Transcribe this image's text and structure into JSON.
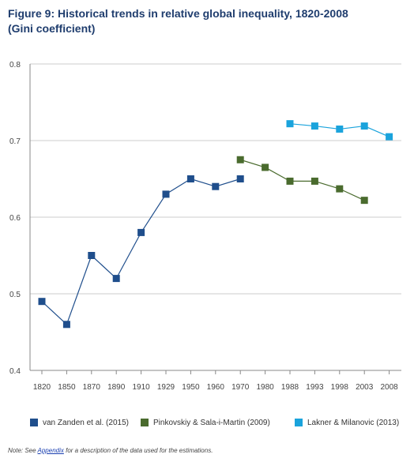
{
  "figure": {
    "title_line1": "Figure 9: Historical trends in relative global inequality, 1820-2008",
    "title_line2": "(Gini coefficient)",
    "footnote_prefix": "Note: See ",
    "footnote_link": "Appendix",
    "footnote_suffix": " for a description of the data used for the estimations."
  },
  "colors": {
    "title": "#1f3d6e",
    "van_zanden": "#1f4e8c",
    "pinkovskiy": "#4a6b2e",
    "lakner": "#1aa3dc",
    "axis": "#888888",
    "grid": "#cccccc"
  },
  "chart_data": {
    "type": "line",
    "title": "Figure 9: Historical trends in relative global inequality, 1820-2008",
    "subtitle": "(Gini coefficient)",
    "xlabel": "",
    "ylabel": "",
    "ylim": [
      0.4,
      0.8
    ],
    "yticks": [
      "0.4",
      "0.5",
      "0.6",
      "0.7",
      "0.8"
    ],
    "ytick_values": [
      0.4,
      0.5,
      0.6,
      0.7,
      0.8
    ],
    "categories": [
      "1820",
      "1850",
      "1870",
      "1890",
      "1910",
      "1929",
      "1950",
      "1960",
      "1970",
      "1980",
      "1988",
      "1993",
      "1998",
      "2003",
      "2008"
    ],
    "grid": "horizontal",
    "legend_position": "bottom",
    "series": [
      {
        "name": "van Zanden et al. (2015)",
        "color": "#1f4e8c",
        "values": [
          0.49,
          0.46,
          0.55,
          0.52,
          0.58,
          0.63,
          0.65,
          0.64,
          0.65,
          null,
          null,
          null,
          null,
          null,
          null
        ]
      },
      {
        "name": "Pinkovskiy & Sala-i-Martin (2009)",
        "color": "#4a6b2e",
        "values": [
          null,
          null,
          null,
          null,
          null,
          null,
          null,
          null,
          0.675,
          0.665,
          0.647,
          0.647,
          0.637,
          0.622,
          null
        ]
      },
      {
        "name": "Lakner & Milanovic (2013)",
        "color": "#1aa3dc",
        "values": [
          null,
          null,
          null,
          null,
          null,
          null,
          null,
          null,
          null,
          null,
          0.722,
          0.719,
          0.715,
          0.719,
          0.705
        ]
      }
    ]
  }
}
